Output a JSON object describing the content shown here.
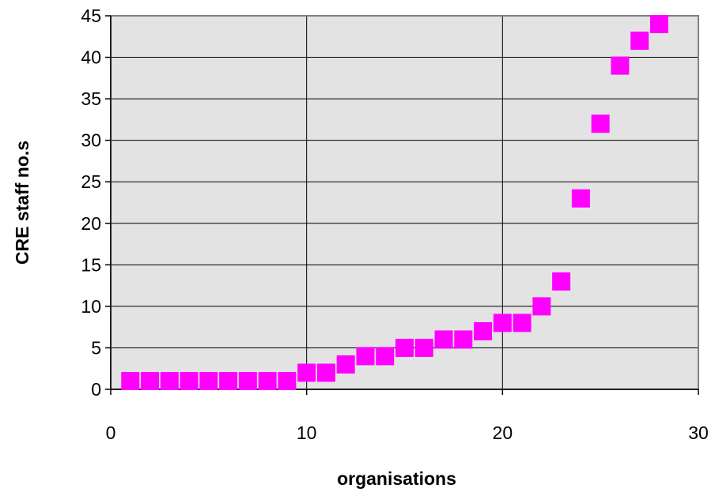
{
  "chart_data": {
    "type": "scatter",
    "title": "",
    "xlabel": "organisations",
    "ylabel": "CRE staff no.s",
    "xlim": [
      0,
      30
    ],
    "ylim": [
      0,
      45
    ],
    "x_ticks": [
      0,
      10,
      20,
      30
    ],
    "y_ticks": [
      0,
      5,
      10,
      15,
      20,
      25,
      30,
      35,
      40,
      45
    ],
    "grid": "major gridlines on both axes",
    "legend": "none",
    "plot_background": "#e3e3e3",
    "marker": {
      "shape": "square",
      "color": "#ff00ff"
    },
    "series": [
      {
        "x": [
          1,
          2,
          3,
          4,
          5,
          6,
          7,
          8,
          9,
          10,
          11,
          12,
          13,
          14,
          15,
          16,
          17,
          18,
          19,
          20,
          21,
          22,
          23,
          24,
          25,
          26,
          27,
          28
        ],
        "y": [
          1,
          1,
          1,
          1,
          1,
          1,
          1,
          1,
          1,
          2,
          2,
          3,
          4,
          4,
          5,
          5,
          6,
          6,
          7,
          8,
          8,
          10,
          13,
          23,
          32,
          39,
          42,
          44
        ]
      }
    ]
  }
}
